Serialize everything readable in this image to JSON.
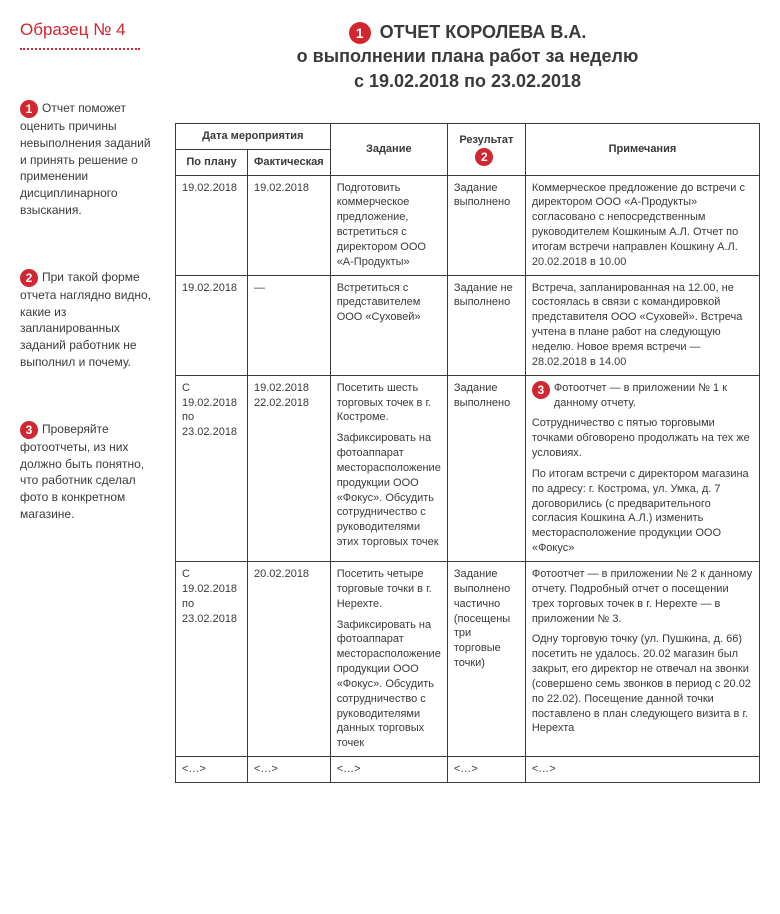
{
  "sidebar": {
    "sample_label": "Образец № 4",
    "notes": [
      {
        "num": "1",
        "text": "Отчет поможет оценить причины невыполнения заданий и принять решение о применении дисциплинарного взыскания."
      },
      {
        "num": "2",
        "text": "При такой форме отчета наглядно видно, какие из запланированных заданий работник не выполнил и почему."
      },
      {
        "num": "3",
        "text": "Проверяйте фотоотчеты, из них должно быть понятно, что работник сделал фото в конкретном магазине."
      }
    ]
  },
  "title": {
    "badge": "1",
    "line1": "ОТЧЕТ КОРОЛЕВА В.А.",
    "line2": "о выполнении плана работ за неделю",
    "line3": "с 19.02.2018 по 23.02.2018"
  },
  "table": {
    "headers": {
      "date_group": "Дата мероприятия",
      "date_plan": "По плану",
      "date_fact": "Фактическая",
      "task": "Задание",
      "result": "Результат",
      "result_badge": "2",
      "notes": "Примечания"
    },
    "rows": [
      {
        "plan": "19.02.2018",
        "fact": "19.02.2018",
        "task": [
          "Подготовить коммерческое предложение, встретиться с директором ООО «А-Продукты»"
        ],
        "result": "Задание выполнено",
        "notes": [
          "Коммерческое предложение до встречи с директором ООО «А-Продукты» согласовано с непосредственным руководителем Кошкиным А.Л. Отчет по итогам встречи направлен Кошкину А.Л. 20.02.2018 в 10.00"
        ]
      },
      {
        "plan": "19.02.2018",
        "fact": "—",
        "task": [
          "Встретиться с представителем ООО «Суховей»"
        ],
        "result": "Задание не выполнено",
        "notes": [
          "Встреча, запланированная на 12.00, не состоялась в связи с командировкой представителя ООО «Суховей». Встреча учтена в плане работ на следующую неделю. Новое время встречи — 28.02.2018 в 14.00"
        ]
      },
      {
        "plan": "С 19.02.2018 по 23.02.2018",
        "fact": "19.02.2018 22.02.2018",
        "task": [
          "Посетить шесть торговых точек в г. Костроме.",
          "Зафиксировать на фотоаппарат месторасположение продукции ООО «Фокус». Обсудить сотрудничество с руководителями этих торговых точек"
        ],
        "result": "Задание выполнено",
        "note_badge": "3",
        "notes": [
          "Фотоотчет — в приложении № 1 к данному отчету.",
          "Сотрудничество с пятью торговыми точками обговорено продолжать на тех же условиях.",
          "По итогам встречи с директором магазина по адресу: г. Кострома, ул. Умка, д. 7 договорились (с предварительного согласия Кошкина А.Л.) изменить месторасположение продукции ООО «Фокус»"
        ]
      },
      {
        "plan": "С 19.02.2018 по 23.02.2018",
        "fact": "20.02.2018",
        "task": [
          "Посетить четыре торговые точки в г. Нерехте.",
          "Зафиксировать на фотоаппарат месторасположение продукции ООО «Фокус». Обсудить сотрудничество с руководителями данных торговых точек"
        ],
        "result": "Задание выполнено частично (посещены три торговые точки)",
        "notes": [
          "Фотоотчет — в приложении № 2 к данному отчету. Подробный отчет о посещении трех торговых точек в г. Нерехте — в приложении № 3.",
          "Одну торговую точку (ул. Пушкина, д. 66) посетить не удалось. 20.02 магазин был закрыт, его директор не отвечал на звонки (совершено семь звонков в период с 20.02 по 22.02). Посещение данной точки поставлено в план следующего визита в г. Нерехта"
        ]
      }
    ],
    "ellipsis": "<…>"
  },
  "colors": {
    "accent": "#d22630",
    "text": "#3a3a3a",
    "border": "#3a3a3a",
    "background": "#ffffff"
  }
}
